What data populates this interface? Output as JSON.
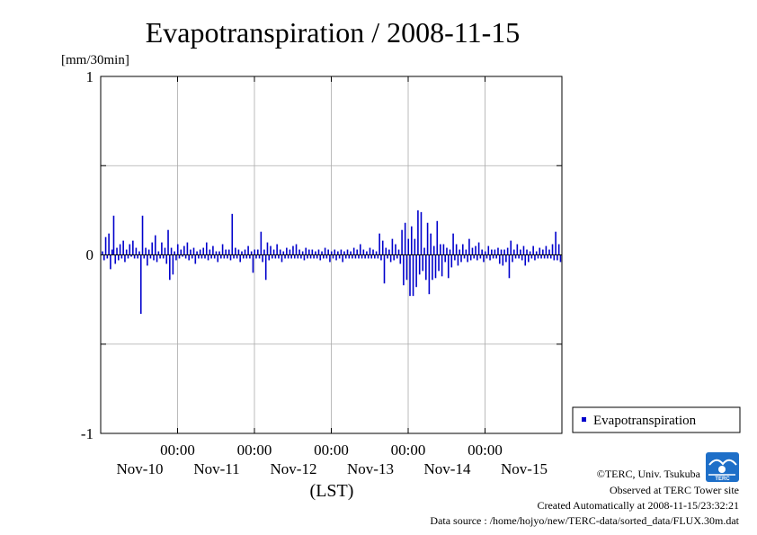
{
  "chart_data": {
    "type": "bar",
    "title": "Evapotranspiration / 2008-11-15",
    "ylabel": "[mm/30min]",
    "xlabel": "(LST)",
    "ylim": [
      -1,
      1
    ],
    "yticks": [
      "1",
      "0",
      "-1"
    ],
    "grid": true,
    "legend_position": "right",
    "series": [
      {
        "name": "Evapotranspiration",
        "color": "#0000cc",
        "x_start": "2008-11-09 00:00",
        "interval": "30min",
        "values": [
          0.02,
          -0.03,
          0.1,
          -0.02,
          0.12,
          -0.08,
          0.03,
          0.22,
          -0.05,
          0.04,
          -0.03,
          0.06,
          -0.02,
          0.08,
          -0.04,
          0.03,
          -0.02,
          0.06,
          -0.01,
          0.08,
          -0.02,
          0.04,
          -0.02,
          0.02,
          -0.33,
          0.22,
          -0.02,
          0.04,
          -0.06,
          0.03,
          -0.02,
          0.07,
          -0.03,
          0.11,
          -0.04,
          0.02,
          -0.02,
          0.07,
          -0.02,
          0.04,
          -0.05,
          0.14,
          -0.14,
          0.04,
          -0.11,
          0.02,
          -0.03,
          0.06,
          -0.02,
          0.03,
          -0.01,
          0.05,
          -0.02,
          0.07,
          -0.03,
          0.03,
          -0.02,
          0.04,
          -0.05,
          0.02,
          -0.02,
          0.03,
          -0.02,
          0.04,
          -0.02,
          0.07,
          -0.03,
          0.03,
          -0.02,
          0.05,
          -0.02,
          0.02,
          -0.04,
          0.02,
          -0.02,
          0.06,
          -0.02,
          0.03,
          -0.02,
          0.03,
          -0.03,
          0.23,
          -0.02,
          0.04,
          -0.02,
          0.03,
          -0.04,
          0.02,
          -0.02,
          0.03,
          -0.02,
          0.05,
          -0.02,
          0.02,
          -0.1,
          0.03,
          -0.02,
          0.03,
          -0.02,
          0.13,
          -0.04,
          0.03,
          -0.14,
          0.07,
          -0.03,
          0.05,
          -0.02,
          0.03,
          -0.02,
          0.06,
          -0.02,
          0.03,
          -0.04,
          0.02,
          -0.02,
          0.04,
          -0.02,
          0.03,
          -0.02,
          0.05,
          -0.02,
          0.06,
          -0.02,
          0.03,
          -0.02,
          0.02,
          -0.03,
          0.04,
          -0.02,
          0.03,
          -0.02,
          0.03,
          -0.02,
          0.02,
          -0.02,
          0.03,
          -0.03,
          0.02,
          -0.02,
          0.04,
          -0.02,
          0.03,
          -0.04,
          0.02,
          -0.02,
          0.03,
          -0.03,
          0.02,
          -0.02,
          0.03,
          -0.04,
          0.02,
          -0.02,
          0.03,
          -0.02,
          0.02,
          -0.02,
          0.04,
          -0.02,
          0.03,
          -0.02,
          0.06,
          -0.02,
          0.03,
          -0.02,
          0.02,
          -0.02,
          0.04,
          -0.02,
          0.03,
          -0.02,
          0.02,
          -0.02,
          0.12,
          -0.03,
          0.08,
          -0.16,
          0.04,
          -0.02,
          0.03,
          -0.04,
          0.09,
          -0.03,
          0.06,
          -0.02,
          0.03,
          -0.05,
          0.14,
          -0.17,
          0.18,
          -0.14,
          0.09,
          -0.23,
          0.16,
          -0.23,
          0.09,
          -0.18,
          0.25,
          -0.11,
          0.24,
          -0.09,
          0.04,
          -0.14,
          0.18,
          -0.22,
          0.12,
          -0.14,
          0.05,
          -0.13,
          0.19,
          -0.09,
          0.06,
          -0.12,
          0.06,
          -0.04,
          0.04,
          -0.13,
          0.03,
          -0.07,
          0.12,
          -0.03,
          0.06,
          -0.06,
          0.03,
          -0.04,
          0.06,
          -0.02,
          0.03,
          -0.04,
          0.09,
          -0.03,
          0.04,
          -0.02,
          0.05,
          -0.03,
          0.07,
          -0.02,
          0.03,
          -0.04,
          0.02,
          -0.02,
          0.05,
          -0.03,
          0.03,
          -0.02,
          0.03,
          -0.02,
          0.04,
          -0.05,
          0.03,
          -0.06,
          0.03,
          -0.04,
          0.04,
          -0.13,
          0.08,
          -0.04,
          0.03,
          -0.02,
          0.06,
          -0.02,
          0.03,
          -0.03,
          0.05,
          -0.06,
          0.03,
          -0.04,
          0.02,
          -0.02,
          0.05,
          -0.03,
          0.02,
          -0.02,
          0.04,
          -0.02,
          0.03,
          -0.02,
          0.05,
          -0.02,
          0.03,
          -0.02,
          0.06,
          -0.03,
          0.13,
          -0.03,
          0.06,
          -0.04,
          0.18,
          -0.24,
          0.2,
          -0.04,
          0.05,
          -0.29,
          0.07,
          -0.06,
          0.04,
          -0.05,
          0.03,
          -0.06,
          0.03,
          -0.04,
          0.05,
          -0.02,
          0.06,
          -0.02,
          0.04,
          -0.03,
          0.22,
          -0.04,
          0.07,
          -0.02,
          0.06,
          -0.03,
          0.04,
          -0.13,
          0.15,
          -0.03,
          0.04,
          -0.24,
          0.12,
          -0.06,
          0.05,
          -0.09,
          0.08,
          -0.05,
          0.04,
          -0.03,
          0.05,
          -0.03,
          0.04,
          -0.02,
          0.05,
          -0.03,
          0.04,
          -0.02,
          0.03,
          -0.13,
          0.08,
          -0.04,
          0.05,
          -0.03,
          0.06,
          -0.02,
          0.04,
          -0.03,
          0.03,
          -0.02
        ]
      }
    ],
    "x_ticks": [
      {
        "time": "00:00",
        "date": "Nov-10",
        "at": "2008-11-10 00:00"
      },
      {
        "time": "00:00",
        "date": "Nov-11",
        "at": "2008-11-11 00:00"
      },
      {
        "time": "00:00",
        "date": "Nov-12",
        "at": "2008-11-12 00:00"
      },
      {
        "time": "00:00",
        "date": "Nov-13",
        "at": "2008-11-13 00:00"
      },
      {
        "time": "00:00",
        "date": "Nov-14",
        "at": "2008-11-14 00:00"
      },
      {
        "time": "",
        "date": "Nov-15",
        "at": "2008-11-15 00:00"
      }
    ]
  },
  "credits": {
    "copyright": "©TERC, Univ. Tsukuba",
    "site": "Observed at TERC Tower site",
    "created": "Created Automatically at 2008-11-15/23:32:21",
    "source": "Data source : /home/hojyo/new/TERC-data/sorted_data/FLUX.30m.dat",
    "logo_text": "TERC"
  }
}
